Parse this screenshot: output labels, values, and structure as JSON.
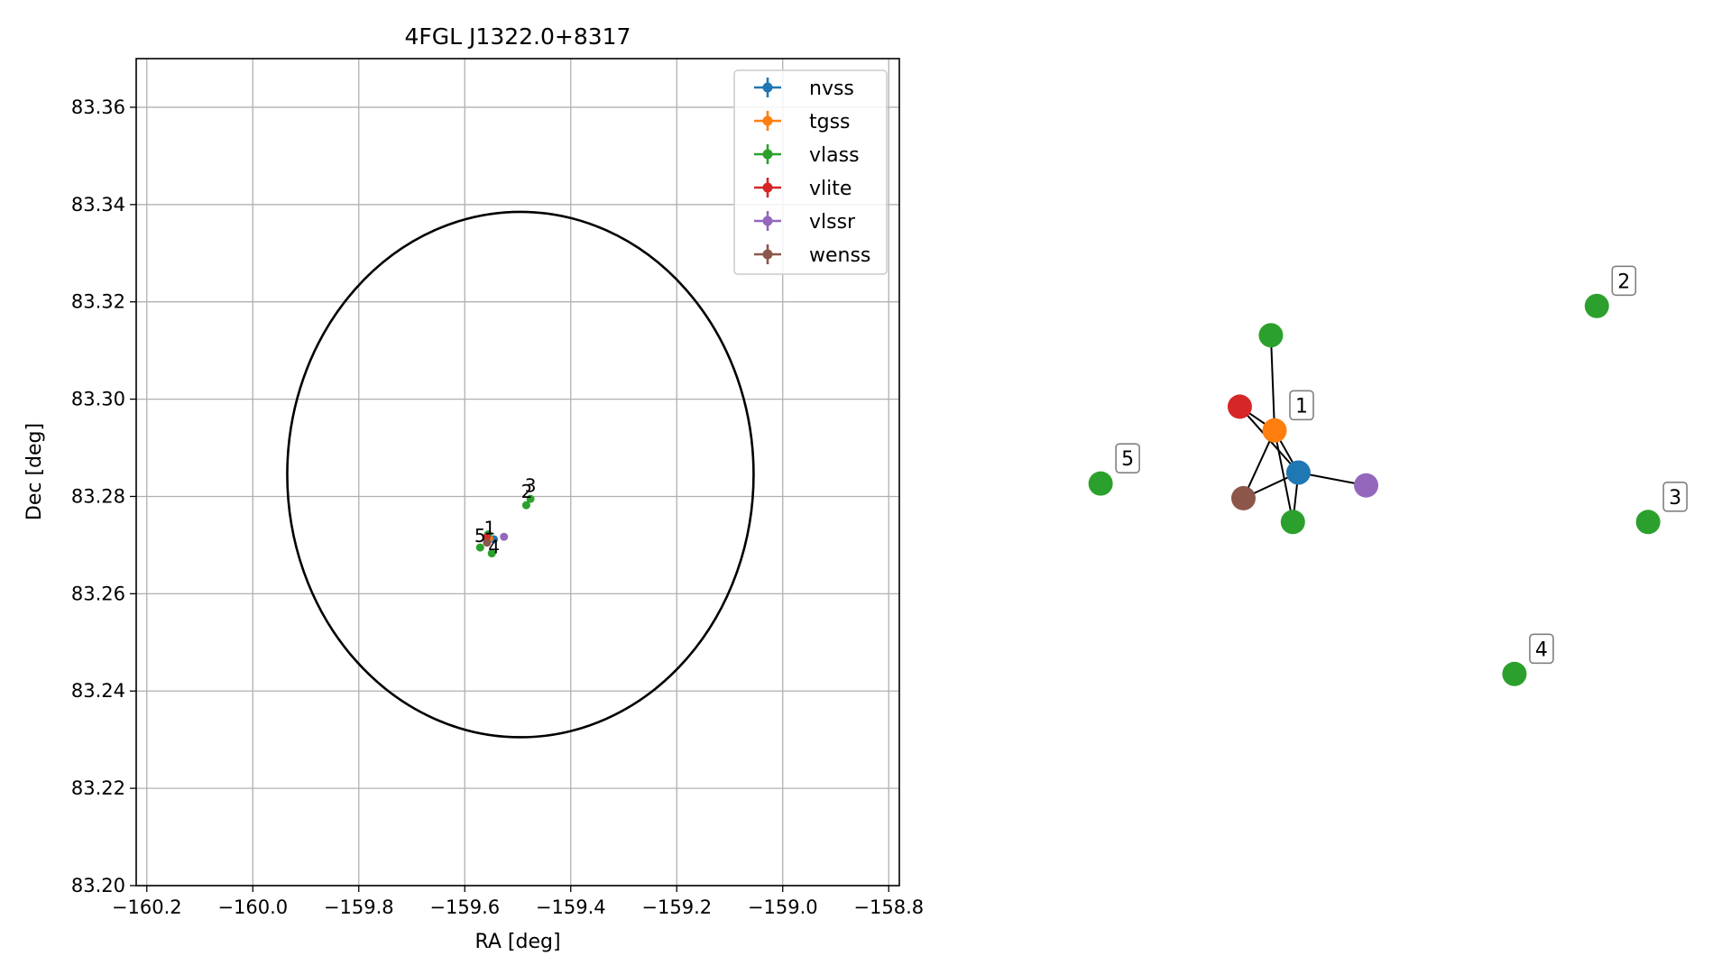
{
  "chart_data": [
    {
      "type": "scatter",
      "title": "4FGL J1322.0+8317",
      "xlabel": "RA [deg]",
      "ylabel": "Dec [deg]",
      "xlim": [
        -160.22,
        -158.78
      ],
      "ylim": [
        83.2,
        83.37
      ],
      "xticks": [
        -160.2,
        -160.0,
        -159.8,
        -159.6,
        -159.4,
        -159.2,
        -159.0,
        -158.8
      ],
      "xtick_labels": [
        "−160.2",
        "−160.0",
        "−159.8",
        "−159.6",
        "−159.4",
        "−159.2",
        "−159.0",
        "−158.8"
      ],
      "yticks": [
        83.2,
        83.22,
        83.24,
        83.26,
        83.28,
        83.3,
        83.32,
        83.34,
        83.36
      ],
      "ytick_labels": [
        "83.20",
        "83.22",
        "83.24",
        "83.26",
        "83.28",
        "83.30",
        "83.32",
        "83.34",
        "83.36"
      ],
      "grid": true,
      "legend_position": "top-right",
      "ellipse": {
        "center": [
          -159.495,
          83.2845
        ],
        "ra_semi_axis": 0.44,
        "dec_semi_axis": 0.054
      },
      "series": [
        {
          "name": "nvss",
          "color": "#1f77b4",
          "points": [
            [
              -159.545,
              83.2712
            ]
          ]
        },
        {
          "name": "tgss",
          "color": "#ff7f0e",
          "points": [
            [
              -159.554,
              83.2714
            ]
          ]
        },
        {
          "name": "vlass",
          "color": "#2ca02c",
          "points": [
            [
              -159.556,
              83.2722
            ],
            [
              -159.476,
              83.2795
            ],
            [
              -159.484,
              83.2782
            ],
            [
              -159.549,
              83.2683
            ],
            [
              -159.571,
              83.2695
            ]
          ]
        },
        {
          "name": "vlite",
          "color": "#d62728",
          "points": [
            [
              -159.559,
              83.2716
            ]
          ]
        },
        {
          "name": "vlssr",
          "color": "#9467bd",
          "points": [
            [
              -159.526,
              83.2717
            ]
          ]
        },
        {
          "name": "wenss",
          "color": "#8c564b",
          "points": [
            [
              -159.558,
              83.2705
            ]
          ]
        }
      ],
      "labels": [
        {
          "text": "1",
          "x": -159.553,
          "y": 83.2722
        },
        {
          "text": "2",
          "x": -159.483,
          "y": 83.2797
        },
        {
          "text": "3",
          "x": -159.476,
          "y": 83.2809
        },
        {
          "text": "4",
          "x": -159.545,
          "y": 83.2683
        },
        {
          "text": "5",
          "x": -159.571,
          "y": 83.2706
        }
      ]
    },
    {
      "type": "network",
      "nodes": [
        {
          "id": "vlass-top",
          "color": "#2ca02c",
          "x": -0.02,
          "y": 0.75,
          "label": ""
        },
        {
          "id": "vlite",
          "color": "#d62728",
          "x": -0.19,
          "y": 0.36,
          "label": ""
        },
        {
          "id": "tgss",
          "color": "#ff7f0e",
          "x": 0,
          "y": 0.23,
          "label": "1"
        },
        {
          "id": "nvss",
          "color": "#1f77b4",
          "x": 0.13,
          "y": 0,
          "label": ""
        },
        {
          "id": "vlssr",
          "color": "#9467bd",
          "x": 0.5,
          "y": -0.07,
          "label": ""
        },
        {
          "id": "wenss",
          "color": "#8c564b",
          "x": -0.17,
          "y": -0.14,
          "label": ""
        },
        {
          "id": "vlass-bottom",
          "color": "#2ca02c",
          "x": 0.1,
          "y": -0.27,
          "label": ""
        },
        {
          "id": "vlass-2",
          "color": "#2ca02c",
          "x": 1.76,
          "y": 0.91,
          "label": "2"
        },
        {
          "id": "vlass-5",
          "color": "#2ca02c",
          "x": -0.95,
          "y": -0.06,
          "label": "5"
        },
        {
          "id": "vlass-3",
          "color": "#2ca02c",
          "x": 2.04,
          "y": -0.27,
          "label": "3"
        },
        {
          "id": "vlass-4",
          "color": "#2ca02c",
          "x": 1.31,
          "y": -1.1,
          "label": "4"
        }
      ],
      "edges": [
        [
          "tgss",
          "vlass-top"
        ],
        [
          "tgss",
          "vlite"
        ],
        [
          "tgss",
          "nvss"
        ],
        [
          "tgss",
          "wenss"
        ],
        [
          "tgss",
          "vlass-bottom"
        ],
        [
          "vlite",
          "nvss"
        ],
        [
          "nvss",
          "vlssr"
        ],
        [
          "nvss",
          "wenss"
        ],
        [
          "nvss",
          "vlass-bottom"
        ]
      ]
    }
  ]
}
